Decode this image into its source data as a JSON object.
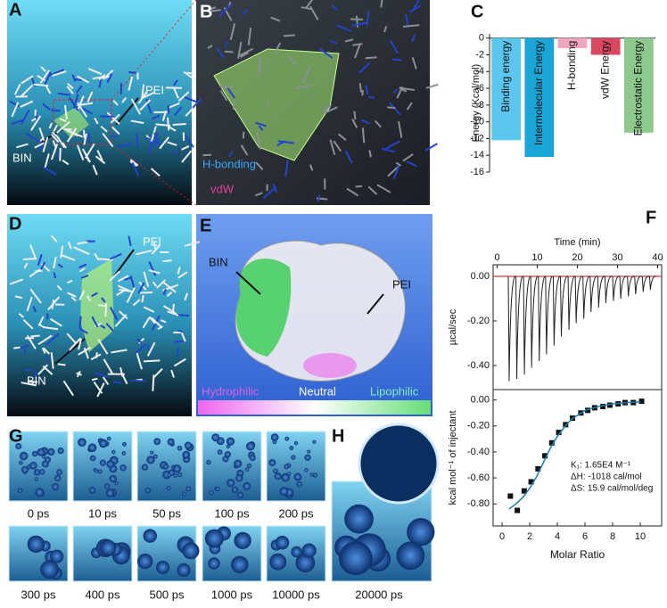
{
  "panels": {
    "A": {
      "label": "A",
      "texts": [
        "PEI",
        "BIN"
      ]
    },
    "B": {
      "label": "B",
      "texts": [
        "H-bonding",
        "vdW"
      ]
    },
    "C": {
      "label": "C"
    },
    "D": {
      "label": "D",
      "texts": [
        "PEI",
        "BIN"
      ]
    },
    "E": {
      "label": "E",
      "texts": [
        "BIN",
        "PEI",
        "Hydrophilic",
        "Neutral",
        "Lipophilic"
      ]
    },
    "F": {
      "label": "F"
    },
    "G": {
      "label": "G",
      "frames": [
        "0 ps",
        "10 ps",
        "50 ps",
        "100 ps",
        "200 ps",
        "300 ps",
        "400 ps",
        "500 ps",
        "1000 ps",
        "10000 ps"
      ]
    },
    "H": {
      "label": "H",
      "frame": "20000 ps"
    }
  },
  "chart_data": [
    {
      "type": "bar",
      "y_label": "Energy (Kcal/mol)",
      "categories": [
        "Binding energy",
        "Intermolecular Energy",
        "H-bonding",
        "vdW Energy",
        "Electrostatic Energy"
      ],
      "values": [
        -12.2,
        -14.2,
        -1.2,
        -2.0,
        -11.3
      ],
      "colors": [
        "#5cc6ee",
        "#1aa5d6",
        "#f2a6bd",
        "#d9485f",
        "#8dc98c"
      ],
      "ylim": [
        -16,
        0.5
      ],
      "yticks": [
        0,
        -2,
        -4,
        -6,
        -8,
        -10,
        -12,
        -14,
        -16
      ]
    },
    {
      "type": "thermogram",
      "x_label": "Time (min)",
      "y_label": "µcal/sec",
      "x": [
        3.0,
        4.9,
        6.8,
        8.6,
        10.5,
        12.3,
        14.2,
        16.0,
        17.9,
        19.7,
        21.6,
        23.4,
        25.3,
        27.1,
        29.0,
        30.8,
        32.7,
        34.5,
        36.4,
        38.2
      ],
      "values": [
        -0.47,
        -0.46,
        -0.44,
        -0.41,
        -0.38,
        -0.35,
        -0.31,
        -0.27,
        -0.24,
        -0.21,
        -0.19,
        -0.16,
        -0.14,
        -0.12,
        -0.11,
        -0.1,
        -0.09,
        -0.08,
        -0.07,
        -0.06
      ],
      "color": "#222222",
      "baseline_color": "#d43c3c",
      "xlim": [
        -1,
        41
      ],
      "xticks": [
        0,
        10,
        20,
        30,
        40
      ],
      "ylim": [
        -0.508,
        0.052
      ],
      "yticks": [
        {
          "value": 0,
          "label": "0.00"
        },
        {
          "value": -0.2,
          "label": "-0.20"
        },
        {
          "value": -0.4,
          "label": "-0.40"
        }
      ]
    },
    {
      "type": "scatter",
      "x_label": "Molar Ratio",
      "y_label": "kcal mol⁻¹ of injectant",
      "series": [
        {
          "mode": "points",
          "color": "#111111",
          "x": [
            0.6,
            1.1,
            1.6,
            2.1,
            2.6,
            3.1,
            3.6,
            4.1,
            4.6,
            5.1,
            5.7,
            6.2,
            6.7,
            7.3,
            7.8,
            8.4,
            8.9,
            9.5,
            10.1
          ],
          "values": [
            -0.74,
            -0.85,
            -0.7,
            -0.63,
            -0.53,
            -0.43,
            -0.33,
            -0.25,
            -0.19,
            -0.14,
            -0.1,
            -0.08,
            -0.06,
            -0.05,
            -0.04,
            -0.03,
            -0.02,
            -0.02,
            -0.01
          ]
        },
        {
          "mode": "line",
          "color": "#1a7fb0",
          "x": [
            0.5,
            1,
            1.5,
            2,
            2.5,
            3,
            3.5,
            4,
            4.5,
            5,
            6,
            7,
            8,
            9,
            10
          ],
          "values": [
            -0.84,
            -0.8,
            -0.75,
            -0.68,
            -0.59,
            -0.48,
            -0.37,
            -0.28,
            -0.21,
            -0.15,
            -0.08,
            -0.05,
            -0.03,
            -0.02,
            -0.015
          ]
        }
      ],
      "annotations": [
        "K₁:  1.65E4 M⁻¹",
        "ΔH:  -1018 cal/mol",
        "ΔS:  15.9 cal/mol/deg"
      ],
      "xlim": [
        -0.65,
        11.55
      ],
      "xticks": [
        0,
        2,
        4,
        6,
        8,
        10
      ],
      "ylim": [
        -0.97,
        0.08
      ],
      "yticks": [
        {
          "value": 0,
          "label": "0.00"
        },
        {
          "value": -0.2,
          "label": "-0.20"
        },
        {
          "value": -0.4,
          "label": "-0.40"
        },
        {
          "value": -0.6,
          "label": "-0.60"
        },
        {
          "value": -0.8,
          "label": "-0.80"
        }
      ]
    }
  ]
}
